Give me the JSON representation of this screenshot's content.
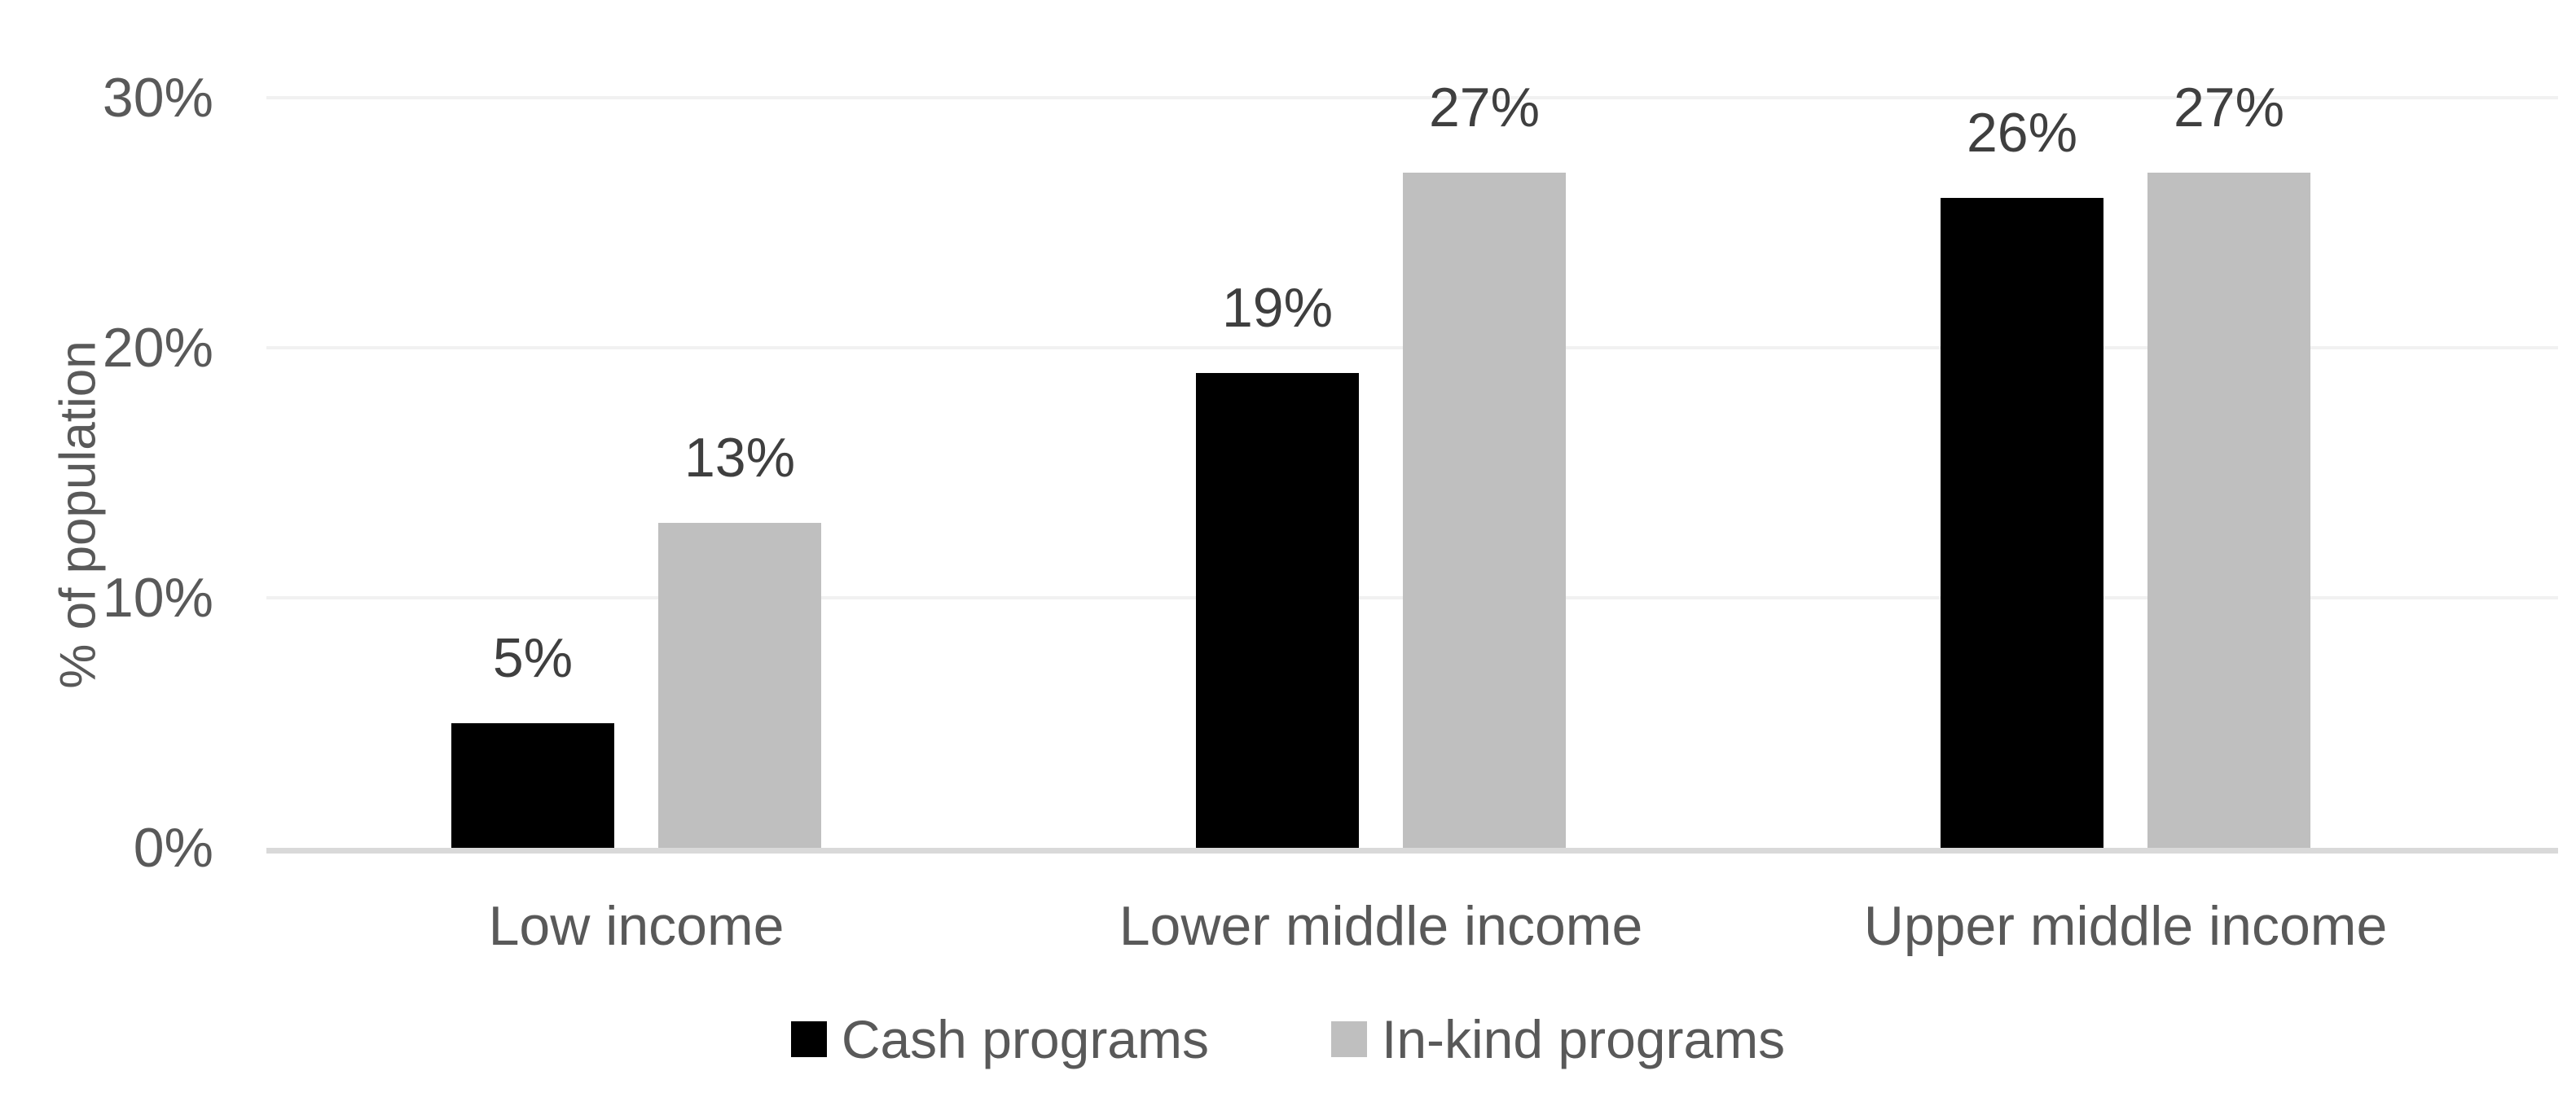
{
  "chart_data": {
    "type": "bar",
    "categories": [
      "Low income",
      "Lower middle income",
      "Upper middle income"
    ],
    "series": [
      {
        "name": "Cash programs",
        "color": "#000000",
        "values": [
          5,
          19,
          26
        ],
        "labels": [
          "5%",
          "19%",
          "26%"
        ]
      },
      {
        "name": "In-kind programs",
        "color": "#bfbfbf",
        "values": [
          13,
          27,
          27
        ],
        "labels": [
          "13%",
          "27%",
          "27%"
        ]
      }
    ],
    "title": "",
    "xlabel": "",
    "ylabel": "% of population",
    "ylim": [
      0,
      30
    ],
    "yticks": [
      {
        "value": 0,
        "label": "0%"
      },
      {
        "value": 10,
        "label": "10%"
      },
      {
        "value": 20,
        "label": "20%"
      },
      {
        "value": 30,
        "label": "30%"
      }
    ],
    "grid": true,
    "legend_position": "bottom"
  },
  "colors": {
    "background": "#ffffff",
    "axis_text": "#595959",
    "value_label": "#3f3f3f",
    "gridline": "#f1f1f1",
    "baseline": "#d9d9d9"
  }
}
